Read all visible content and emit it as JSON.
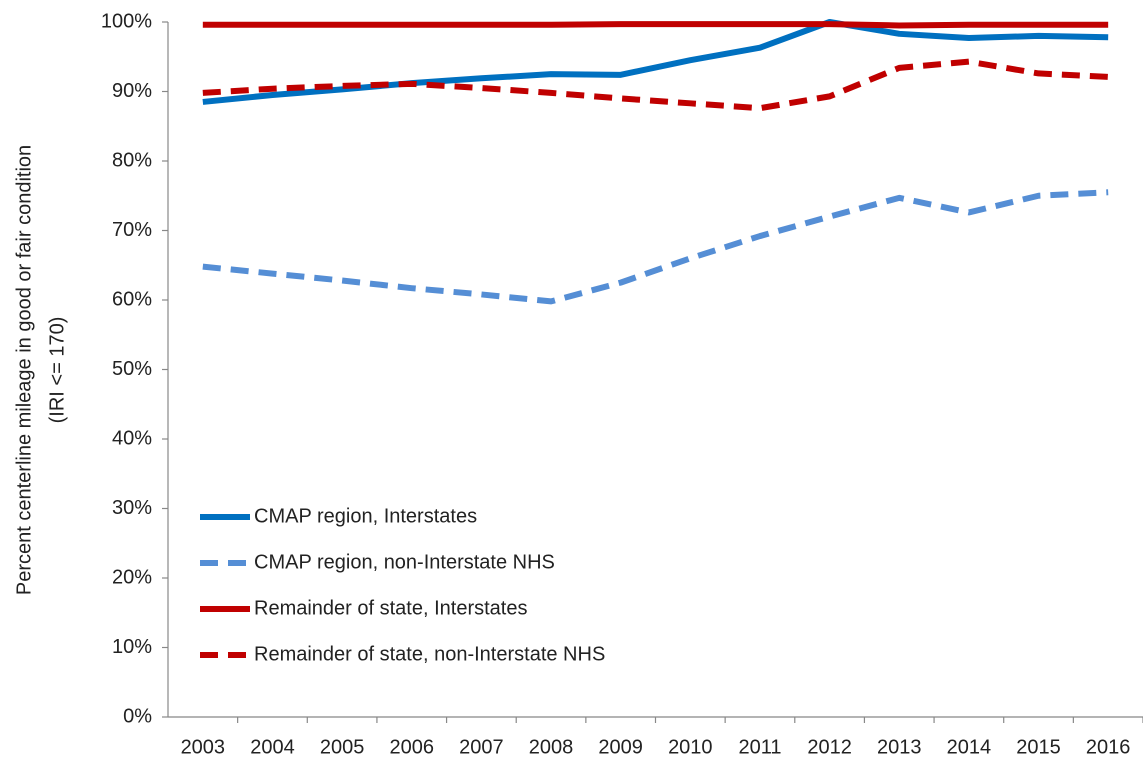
{
  "chart_data": {
    "type": "line",
    "ylabel": [
      "Percent centerline mileage in good or fair condition",
      "(IRI <= 170)"
    ],
    "categories": [
      "2003",
      "2004",
      "2005",
      "2006",
      "2007",
      "2008",
      "2009",
      "2010",
      "2011",
      "2012",
      "2013",
      "2014",
      "2015",
      "2016"
    ],
    "series": [
      {
        "name": "CMAP region, Interstates",
        "color": "#0070c0",
        "dash": false,
        "values": [
          88.5,
          89.5,
          90.3,
          91.2,
          91.9,
          92.5,
          92.4,
          94.5,
          96.3,
          100,
          98.3,
          97.7,
          98,
          97.8
        ]
      },
      {
        "name": "CMAP region, non-Interstate NHS",
        "color": "#558ed5",
        "dash": true,
        "values": [
          64.8,
          63.8,
          62.8,
          61.7,
          60.8,
          59.8,
          62.5,
          66,
          69.2,
          72,
          74.7,
          72.6,
          75,
          75.5
        ]
      },
      {
        "name": "Remainder of state, Interstates",
        "color": "#c00000",
        "dash": false,
        "values": [
          99.6,
          99.6,
          99.6,
          99.6,
          99.6,
          99.6,
          99.7,
          99.7,
          99.7,
          99.7,
          99.5,
          99.6,
          99.6,
          99.6
        ]
      },
      {
        "name": "Remainder of state, non-Interstate NHS",
        "color": "#c00000",
        "dash": true,
        "values": [
          89.8,
          90.4,
          90.8,
          91.1,
          90.5,
          89.8,
          89,
          88.3,
          87.6,
          89.3,
          93.4,
          94.3,
          92.6,
          92.1
        ]
      }
    ],
    "ylim": [
      0,
      100
    ],
    "yticks": [
      {
        "value": 0,
        "label": "0%"
      },
      {
        "value": 10,
        "label": "10%"
      },
      {
        "value": 20,
        "label": "20%"
      },
      {
        "value": 30,
        "label": "30%"
      },
      {
        "value": 40,
        "label": "40%"
      },
      {
        "value": 50,
        "label": "50%"
      },
      {
        "value": 60,
        "label": "60%"
      },
      {
        "value": 70,
        "label": "70%"
      },
      {
        "value": 80,
        "label": "80%"
      },
      {
        "value": 90,
        "label": "90%"
      },
      {
        "value": 100,
        "label": "100%"
      }
    ],
    "grid": false,
    "legend": "lower-left"
  }
}
